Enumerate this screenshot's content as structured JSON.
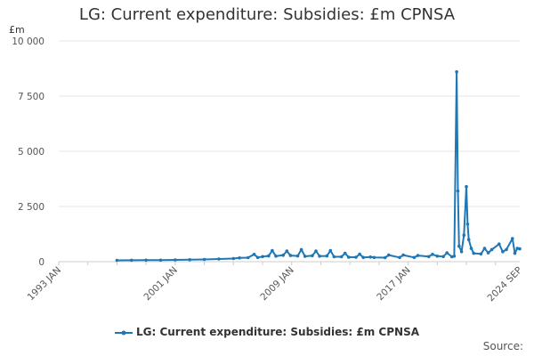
{
  "chart_data": {
    "type": "line",
    "title": "LG: Current expenditure: Subsidies: £m CPNSA",
    "ylabel": "£m",
    "ylim": [
      0,
      10000
    ],
    "yticks": [
      0,
      2500,
      5000,
      7500,
      10000
    ],
    "ytick_labels": [
      "0",
      "2 500",
      "5 000",
      "7 500",
      "10 000"
    ],
    "xlim": [
      "1993-01",
      "2024-09"
    ],
    "xtick_labels": [
      "1993 JAN",
      "2001 JAN",
      "2009 JAN",
      "2017 JAN",
      "2024 SEP"
    ],
    "xtick_positions": [
      "1993-01",
      "2001-01",
      "2009-01",
      "2017-01",
      "2024-09"
    ],
    "grid": true,
    "legend_position": "bottom",
    "color": "#1f77b4",
    "series": [
      {
        "name": "LG: Current expenditure: Subsidies: £m CPNSA",
        "points": [
          [
            "1997-01",
            60
          ],
          [
            "1998-01",
            65
          ],
          [
            "1999-01",
            68
          ],
          [
            "2000-01",
            70
          ],
          [
            "2001-01",
            80
          ],
          [
            "2002-01",
            90
          ],
          [
            "2003-01",
            100
          ],
          [
            "2004-01",
            120
          ],
          [
            "2005-01",
            140
          ],
          [
            "2005-06",
            170
          ],
          [
            "2006-01",
            180
          ],
          [
            "2006-06",
            330
          ],
          [
            "2006-09",
            190
          ],
          [
            "2007-01",
            230
          ],
          [
            "2007-06",
            260
          ],
          [
            "2007-09",
            500
          ],
          [
            "2007-12",
            250
          ],
          [
            "2008-06",
            290
          ],
          [
            "2008-09",
            480
          ],
          [
            "2008-12",
            280
          ],
          [
            "2009-06",
            260
          ],
          [
            "2009-09",
            550
          ],
          [
            "2009-12",
            240
          ],
          [
            "2010-06",
            270
          ],
          [
            "2010-09",
            480
          ],
          [
            "2010-12",
            250
          ],
          [
            "2011-06",
            260
          ],
          [
            "2011-09",
            500
          ],
          [
            "2011-12",
            220
          ],
          [
            "2012-06",
            220
          ],
          [
            "2012-09",
            380
          ],
          [
            "2012-12",
            200
          ],
          [
            "2013-06",
            200
          ],
          [
            "2013-09",
            340
          ],
          [
            "2013-12",
            190
          ],
          [
            "2014-06",
            210
          ],
          [
            "2014-09",
            190
          ],
          [
            "2015-06",
            180
          ],
          [
            "2015-09",
            300
          ],
          [
            "2016-06",
            190
          ],
          [
            "2016-09",
            300
          ],
          [
            "2017-06",
            190
          ],
          [
            "2017-09",
            280
          ],
          [
            "2018-06",
            230
          ],
          [
            "2018-09",
            330
          ],
          [
            "2019-01",
            250
          ],
          [
            "2019-06",
            230
          ],
          [
            "2019-09",
            400
          ],
          [
            "2020-01",
            220
          ],
          [
            "2020-03",
            250
          ],
          [
            "2020-05",
            8600
          ],
          [
            "2020-06",
            3200
          ],
          [
            "2020-07",
            700
          ],
          [
            "2020-09",
            450
          ],
          [
            "2020-11",
            1200
          ],
          [
            "2021-01",
            3400
          ],
          [
            "2021-02",
            1700
          ],
          [
            "2021-03",
            1000
          ],
          [
            "2021-05",
            600
          ],
          [
            "2021-07",
            380
          ],
          [
            "2022-01",
            350
          ],
          [
            "2022-04",
            600
          ],
          [
            "2022-07",
            400
          ],
          [
            "2022-10",
            550
          ],
          [
            "2023-04",
            800
          ],
          [
            "2023-07",
            450
          ],
          [
            "2023-10",
            550
          ],
          [
            "2024-03",
            1050
          ],
          [
            "2024-05",
            380
          ],
          [
            "2024-07",
            600
          ],
          [
            "2024-09",
            580
          ]
        ]
      }
    ]
  },
  "source_label": "Source:"
}
